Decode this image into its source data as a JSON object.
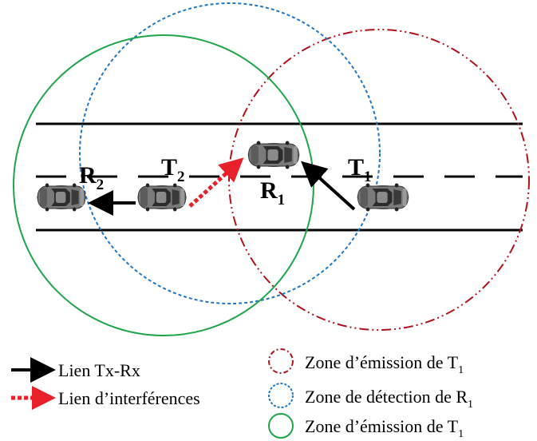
{
  "labels": {
    "r2": {
      "main": "R",
      "sub": "2"
    },
    "t2": {
      "main": "T",
      "sub": "2"
    },
    "r1": {
      "main": "R",
      "sub": "1"
    },
    "t1": {
      "main": "T",
      "sub": "1"
    }
  },
  "legend": {
    "tx_rx_link": "Lien Tx-Rx",
    "interference_link": "Lien d’interférences",
    "zone_red": {
      "text": "Zone d’émission de T",
      "sub": "1"
    },
    "zone_blue": {
      "text": "Zone de détection de R",
      "sub": "1"
    },
    "zone_green": {
      "text": "Zone d’émission de T",
      "sub": "1"
    }
  },
  "colors": {
    "zone_red": "#b0121b",
    "zone_blue": "#1f77c4",
    "zone_green": "#1ea54a",
    "interference_arrow": "#e8202a",
    "link_arrow": "#000000",
    "road_line": "#000000",
    "car_body": "#6f6f6f"
  }
}
